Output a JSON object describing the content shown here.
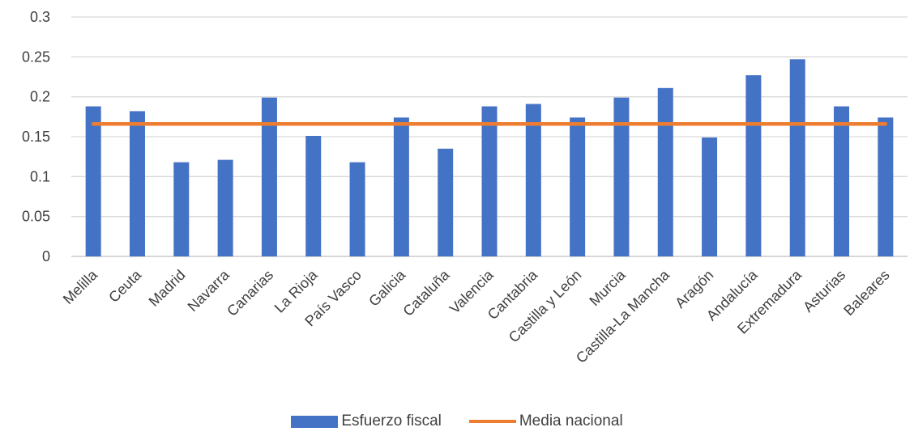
{
  "chart_data": {
    "type": "bar",
    "categories": [
      "Melilla",
      "Ceuta",
      "Madrid",
      "Navarra",
      "Canarias",
      "La Rioja",
      "País Vasco",
      "Galicia",
      "Cataluña",
      "Valencia",
      "Cantabria",
      "Castilla y León",
      "Murcia",
      "Castilla-La Mancha",
      "Aragón",
      "Andalucía",
      "Extremadura",
      "Asturias",
      "Baleares"
    ],
    "series": [
      {
        "name": "Esfuerzo fiscal",
        "type": "bar",
        "color": "#4472C4",
        "values": [
          0.188,
          0.182,
          0.118,
          0.121,
          0.199,
          0.151,
          0.118,
          0.174,
          0.135,
          0.188,
          0.191,
          0.174,
          0.199,
          0.211,
          0.149,
          0.227,
          0.247,
          0.188,
          0.174
        ]
      },
      {
        "name": "Media nacional",
        "type": "line",
        "color": "#ED7D31",
        "values": [
          0.166,
          0.166,
          0.166,
          0.166,
          0.166,
          0.166,
          0.166,
          0.166,
          0.166,
          0.166,
          0.166,
          0.166,
          0.166,
          0.166,
          0.166,
          0.166,
          0.166,
          0.166,
          0.166
        ]
      }
    ],
    "yticks": [
      "0",
      "0.05",
      "0.1",
      "0.15",
      "0.2",
      "0.25",
      "0.3"
    ],
    "ylim": [
      0,
      0.3
    ],
    "grid": true,
    "legend_position": "bottom"
  }
}
